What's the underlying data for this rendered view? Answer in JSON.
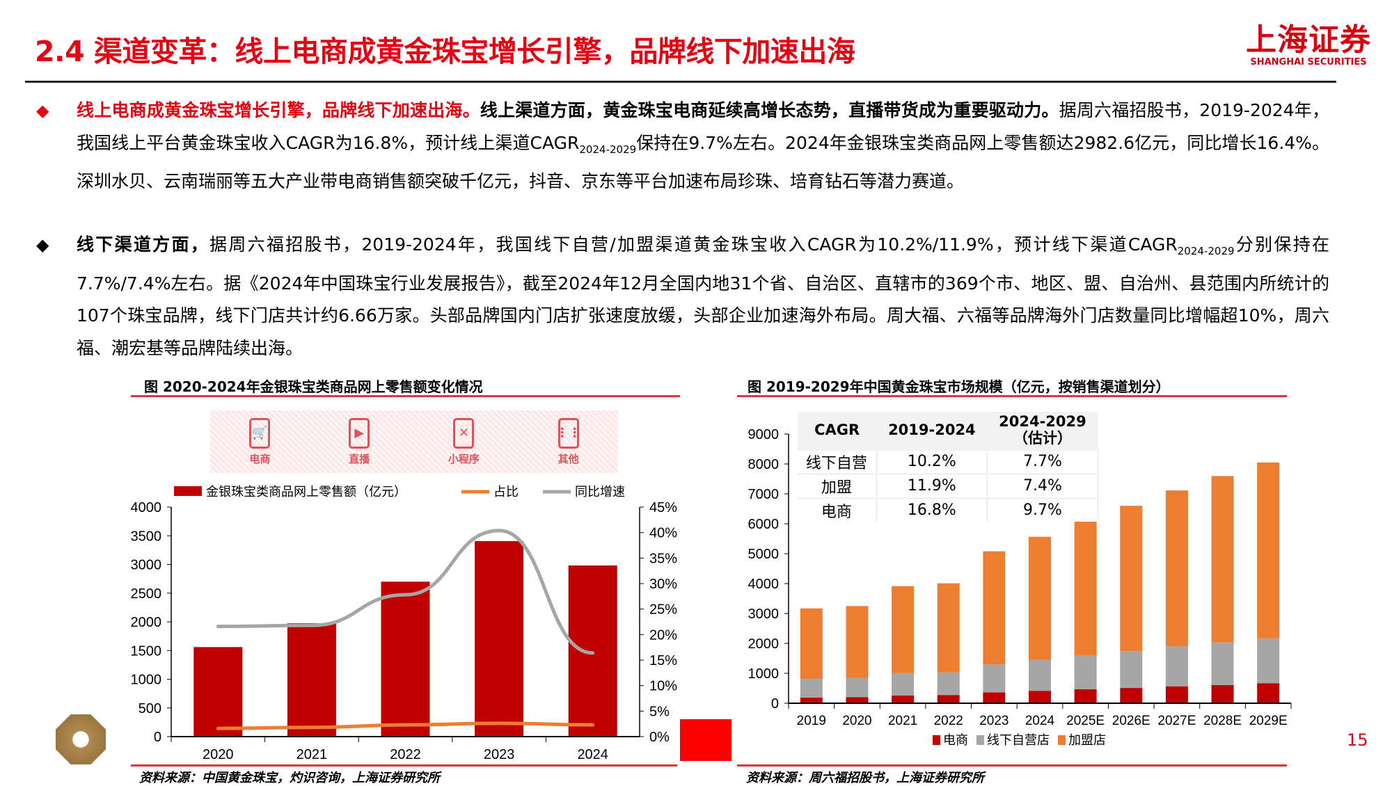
{
  "header": {
    "title": "2.4 渠道变革：线上电商成黄金珠宝增长引擎，品牌线下加速出海",
    "logo_cn": "上海证券",
    "logo_en": "SHANGHAI SECURITIES"
  },
  "bullets": [
    {
      "lead": "线上电商成黄金珠宝增长引擎，品牌线下加速出海。",
      "bold": "线上渠道方面，黄金珠宝电商延续高增长态势，直播带货成为重要驱动力。",
      "t1": "据周六福招股书，2019-2024年，我国线上平台黄金珠宝收入CAGR为16.8%，预计线上渠道CAGR",
      "sub": "2024-2029",
      "t2": "保持在9.7%左右。2024年金银珠宝类商品网上零售额达2982.6亿元，同比增长16.4%。深圳水贝、云南瑞丽等五大产业带电商销售额突破千亿元，抖音、京东等平台加速布局珍珠、培育钻石等潜力赛道。"
    },
    {
      "bold": "线下渠道方面，",
      "t1": "据周六福招股书，2019-2024年，我国线下自营/加盟渠道黄金珠宝收入CAGR为10.2%/11.9%，预计线下渠道CAGR",
      "sub": "2024-2029",
      "t2": "分别保持在7.7%/7.4%左右。据《2024年中国珠宝行业发展报告》，截至2024年12月全国内地31个省、自治区、直辖市的369个市、地区、盟、自治州、县范围内所统计的107个珠宝品牌，线下门店共计约6.66万家。头部品牌国内门店扩张速度放缓，头部企业加速海外布局。周大福、六福等品牌海外门店数量同比增幅超10%，周六福、潮宏基等品牌陆续出海。"
    }
  ],
  "left_figure": {
    "title": "图 2020-2024年金银珠宝类商品网上零售额变化情况",
    "banner": [
      "电商",
      "直播",
      "小程序",
      "其他"
    ],
    "source": "资料来源：中国黄金珠宝，灼识咨询，上海证券研究所"
  },
  "right_figure": {
    "title": "图 2019-2029年中国黄金珠宝市场规模（亿元，按销售渠道划分）",
    "source": "资料来源：周六福招股书，上海证券研究所",
    "table": {
      "headers": [
        "CAGR",
        "2019-2024",
        "2024-2029\n（估计）"
      ],
      "rows": [
        [
          "线下自营",
          "10.2%",
          "7.7%"
        ],
        [
          "加盟",
          "11.9%",
          "7.4%"
        ],
        [
          "电商",
          "16.8%",
          "9.7%"
        ]
      ]
    }
  },
  "page_number": "15",
  "chart_data": [
    {
      "type": "bar",
      "categories": [
        "2020",
        "2021",
        "2022",
        "2023",
        "2024"
      ],
      "series": [
        {
          "name": "金银珠宝类商品网上零售额（亿元）",
          "type": "bar",
          "axis": "left",
          "color": "#c00000",
          "values": [
            1560,
            1975,
            2700,
            3407,
            2983
          ]
        },
        {
          "name": "占比",
          "type": "line",
          "axis": "right",
          "color": "#ed7d31",
          "values": [
            1.6,
            1.8,
            2.3,
            2.6,
            2.3
          ]
        },
        {
          "name": "同比增速",
          "type": "line",
          "axis": "right",
          "color": "#a6a6a6",
          "values": [
            21.6,
            21.8,
            27.8,
            40.4,
            16.4
          ]
        }
      ],
      "ylim": [
        0,
        4000
      ],
      "yticks": [
        "0",
        "500",
        "1000",
        "1500",
        "2000",
        "2500",
        "3000",
        "3500",
        "4000"
      ],
      "y2lim": [
        0,
        45
      ],
      "y2ticks": [
        "0%",
        "5%",
        "10%",
        "15%",
        "20%",
        "25%",
        "30%",
        "35%",
        "40%",
        "45%"
      ],
      "legend": "top"
    },
    {
      "type": "bar",
      "stacked": true,
      "categories": [
        "2019",
        "2020",
        "2021",
        "2022",
        "2023",
        "2024",
        "2025E",
        "2026E",
        "2027E",
        "2028E",
        "2029E"
      ],
      "series": [
        {
          "name": "电商",
          "color": "#c00000",
          "values": [
            190,
            205,
            260,
            275,
            360,
            415,
            465,
            510,
            565,
            605,
            670
          ]
        },
        {
          "name": "线下自营店",
          "color": "#a6a6a6",
          "values": [
            635,
            645,
            745,
            755,
            940,
            1040,
            1140,
            1230,
            1340,
            1425,
            1500
          ]
        },
        {
          "name": "加盟店",
          "color": "#ed7d31",
          "values": [
            2345,
            2400,
            2910,
            2980,
            3780,
            4110,
            4480,
            4860,
            5210,
            5565,
            5880
          ]
        }
      ],
      "ylim": [
        0,
        9000
      ],
      "yticks": [
        "0",
        "1000",
        "2000",
        "3000",
        "4000",
        "5000",
        "6000",
        "7000",
        "8000",
        "9000"
      ],
      "legend": "bottom"
    }
  ]
}
